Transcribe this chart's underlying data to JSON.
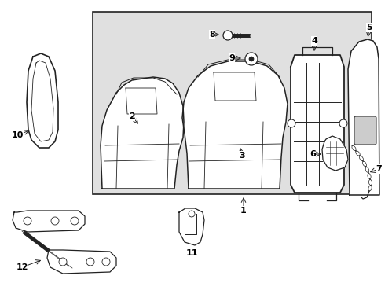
{
  "background_color": "#ffffff",
  "box_fill": "#e0e0e0",
  "line_color": "#222222",
  "label_color": "#000000",
  "fig_width": 4.9,
  "fig_height": 3.6,
  "dpi": 100
}
